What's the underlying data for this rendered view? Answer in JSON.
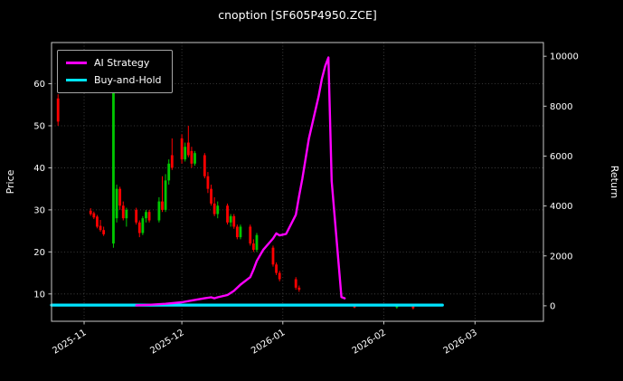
{
  "colors": {
    "background": "#000000",
    "text": "#ffffff",
    "grid": "#484848",
    "spine": "#c8c8c8",
    "candle_up": "#00c800",
    "candle_down": "#ff0000",
    "ai_line": "#ff00ff",
    "buyhold_line": "#00e5ff"
  },
  "chart_data": {
    "type": "candlestick+line",
    "title": "cnoption [SF605P4950.ZCE]",
    "grid": true,
    "x_axis": {
      "ticks": [
        "2025-11",
        "2025-12",
        "2026-01",
        "2026-02",
        "2026-03"
      ],
      "domain": [
        "2025-10-22",
        "2026-03-22"
      ]
    },
    "y_left": {
      "label": "Price",
      "ticks": [
        10,
        20,
        30,
        40,
        50,
        60
      ],
      "domain": [
        3.5,
        69.8
      ]
    },
    "y_right": {
      "label": "Return",
      "ticks": [
        0,
        2000,
        4000,
        6000,
        8000,
        10000
      ],
      "domain": [
        -620,
        10550
      ]
    },
    "legend": {
      "position": "upper-left"
    },
    "candles": [
      [
        "2025-10-24",
        56.5,
        57.5,
        50.0,
        51.0
      ],
      [
        "2025-11-03",
        29.8,
        30.4,
        28.6,
        29.0
      ],
      [
        "2025-11-04",
        29.2,
        29.6,
        27.8,
        28.2
      ],
      [
        "2025-11-05",
        28.4,
        28.8,
        25.6,
        26.0
      ],
      [
        "2025-11-06",
        26.2,
        27.6,
        24.8,
        25.2
      ],
      [
        "2025-11-07",
        25.2,
        26.0,
        23.8,
        24.2
      ],
      [
        "2025-11-10",
        22.0,
        65.5,
        21.0,
        63.0
      ],
      [
        "2025-11-11",
        28.0,
        36.0,
        27.0,
        35.0
      ],
      [
        "2025-11-12",
        35.0,
        35.5,
        30.0,
        31.0
      ],
      [
        "2025-11-13",
        31.0,
        32.0,
        27.5,
        28.0
      ],
      [
        "2025-11-14",
        28.0,
        30.5,
        26.0,
        30.0
      ],
      [
        "2025-11-17",
        30.0,
        30.5,
        26.5,
        27.0
      ],
      [
        "2025-11-18",
        27.0,
        27.5,
        23.5,
        24.5
      ],
      [
        "2025-11-19",
        24.5,
        28.5,
        24.0,
        28.0
      ],
      [
        "2025-11-20",
        28.0,
        30.0,
        27.0,
        29.5
      ],
      [
        "2025-11-21",
        29.5,
        30.0,
        27.0,
        27.5
      ],
      [
        "2025-11-24",
        27.5,
        33.0,
        27.0,
        32.0
      ],
      [
        "2025-11-25",
        32.0,
        38.0,
        29.5,
        30.0
      ],
      [
        "2025-11-26",
        30.0,
        38.5,
        29.5,
        37.0
      ],
      [
        "2025-11-27",
        37.0,
        42.0,
        36.0,
        41.0
      ],
      [
        "2025-11-28",
        43.0,
        47.0,
        39.5,
        40.0
      ],
      [
        "2025-12-01",
        47.0,
        48.0,
        41.0,
        42.0
      ],
      [
        "2025-12-02",
        42.0,
        46.0,
        41.5,
        45.0
      ],
      [
        "2025-12-03",
        46.0,
        50.0,
        42.5,
        43.0
      ],
      [
        "2025-12-04",
        44.0,
        45.0,
        40.0,
        41.0
      ],
      [
        "2025-12-05",
        41.0,
        44.0,
        40.5,
        43.5
      ],
      [
        "2025-12-08",
        43.0,
        43.5,
        37.5,
        38.0
      ],
      [
        "2025-12-09",
        38.0,
        39.0,
        34.0,
        35.0
      ],
      [
        "2025-12-10",
        35.0,
        36.0,
        31.0,
        31.5
      ],
      [
        "2025-12-11",
        31.5,
        33.0,
        28.5,
        29.0
      ],
      [
        "2025-12-12",
        29.0,
        32.0,
        28.0,
        31.0
      ],
      [
        "2025-12-15",
        31.0,
        31.5,
        26.5,
        27.0
      ],
      [
        "2025-12-16",
        27.0,
        29.0,
        26.0,
        28.5
      ],
      [
        "2025-12-17",
        28.5,
        29.0,
        25.5,
        26.0
      ],
      [
        "2025-12-18",
        26.0,
        26.5,
        23.0,
        23.5
      ],
      [
        "2025-12-19",
        23.5,
        26.5,
        23.0,
        26.0
      ],
      [
        "2025-12-22",
        26.0,
        26.5,
        21.5,
        22.0
      ],
      [
        "2025-12-23",
        22.0,
        23.0,
        20.0,
        20.5
      ],
      [
        "2025-12-24",
        20.5,
        24.5,
        20.0,
        24.0
      ],
      [
        "2025-12-29",
        21.0,
        21.5,
        16.5,
        17.0
      ],
      [
        "2025-12-30",
        17.0,
        17.5,
        14.5,
        15.0
      ],
      [
        "2025-12-31",
        15.0,
        15.5,
        13.0,
        13.5
      ],
      [
        "2026-01-05",
        13.5,
        14.0,
        11.0,
        11.5
      ],
      [
        "2026-01-06",
        11.5,
        12.0,
        10.5,
        11.0
      ],
      [
        "2026-01-23",
        7.2,
        7.6,
        6.6,
        6.8
      ],
      [
        "2026-02-05",
        6.8,
        7.6,
        6.5,
        7.4
      ],
      [
        "2026-02-10",
        7.2,
        7.3,
        6.3,
        6.6
      ]
    ],
    "series": [
      {
        "name": "AI Strategy",
        "axis": "right",
        "color": "#ff00ff",
        "line_width": 2.4,
        "points": [
          [
            "2025-11-17",
            20
          ],
          [
            "2025-11-21",
            40
          ],
          [
            "2025-11-26",
            80
          ],
          [
            "2025-12-01",
            140
          ],
          [
            "2025-12-04",
            210
          ],
          [
            "2025-12-08",
            300
          ],
          [
            "2025-12-10",
            340
          ],
          [
            "2025-12-11",
            300
          ],
          [
            "2025-12-12",
            340
          ],
          [
            "2025-12-15",
            430
          ],
          [
            "2025-12-17",
            600
          ],
          [
            "2025-12-19",
            850
          ],
          [
            "2025-12-22",
            1150
          ],
          [
            "2025-12-23",
            1450
          ],
          [
            "2025-12-24",
            1800
          ],
          [
            "2025-12-26",
            2250
          ],
          [
            "2025-12-29",
            2700
          ],
          [
            "2025-12-30",
            2900
          ],
          [
            "2025-12-31",
            2820
          ],
          [
            "2026-01-02",
            2880
          ],
          [
            "2026-01-05",
            3650
          ],
          [
            "2026-01-06",
            4400
          ],
          [
            "2026-01-07",
            5100
          ],
          [
            "2026-01-08",
            5900
          ],
          [
            "2026-01-09",
            6700
          ],
          [
            "2026-01-12",
            8400
          ],
          [
            "2026-01-13",
            9100
          ],
          [
            "2026-01-14",
            9600
          ],
          [
            "2026-01-15",
            9950
          ],
          [
            "2026-01-16",
            5000
          ],
          [
            "2026-01-19",
            350
          ],
          [
            "2026-01-20",
            300
          ]
        ]
      },
      {
        "name": "Buy-and-Hold",
        "axis": "right",
        "color": "#00e5ff",
        "line_width": 3.2,
        "points": [
          [
            "2025-10-22",
            30
          ],
          [
            "2026-02-19",
            30
          ]
        ]
      }
    ]
  }
}
